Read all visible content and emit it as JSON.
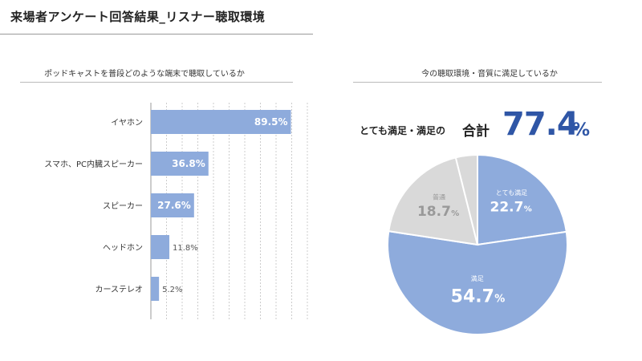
{
  "page_title": "来場者アンケート回答結果_リスナー聴取環境",
  "summary": {
    "prefix": "とても満足・満足の",
    "label": "合計",
    "value": "77.4",
    "unit": "%"
  },
  "colors": {
    "bar": "#8eabdc",
    "pie_main": "#8eabdc",
    "pie_neutral": "#d9d9d9",
    "accent": "#2f56a6",
    "grid": "#cccccc"
  },
  "chart_data": [
    {
      "type": "bar",
      "orientation": "horizontal",
      "title": "ポッドキャストを普段どのような端末で聴取しているか",
      "categories": [
        "イヤホン",
        "スマホ、PC内臓スピーカー",
        "スピーカー",
        "ヘッドホン",
        "カーステレオ"
      ],
      "values": [
        89.5,
        36.8,
        27.6,
        11.8,
        5.2
      ],
      "data_labels": [
        "89.5%",
        "36.8%",
        "27.6%",
        "11.8%",
        "5.2%"
      ],
      "xlim": [
        0,
        100
      ],
      "grid": true
    },
    {
      "type": "pie",
      "title": "今の聴取環境・音質に満足しているか",
      "slices": [
        {
          "label": "とても満足",
          "value": 22.7,
          "display": "22.7"
        },
        {
          "label": "満足",
          "value": 54.7,
          "display": "54.7"
        },
        {
          "label": "普通",
          "value": 18.7,
          "display": "18.7"
        },
        {
          "label": "",
          "value": 3.9,
          "display": ""
        }
      ],
      "unit": "%"
    }
  ]
}
